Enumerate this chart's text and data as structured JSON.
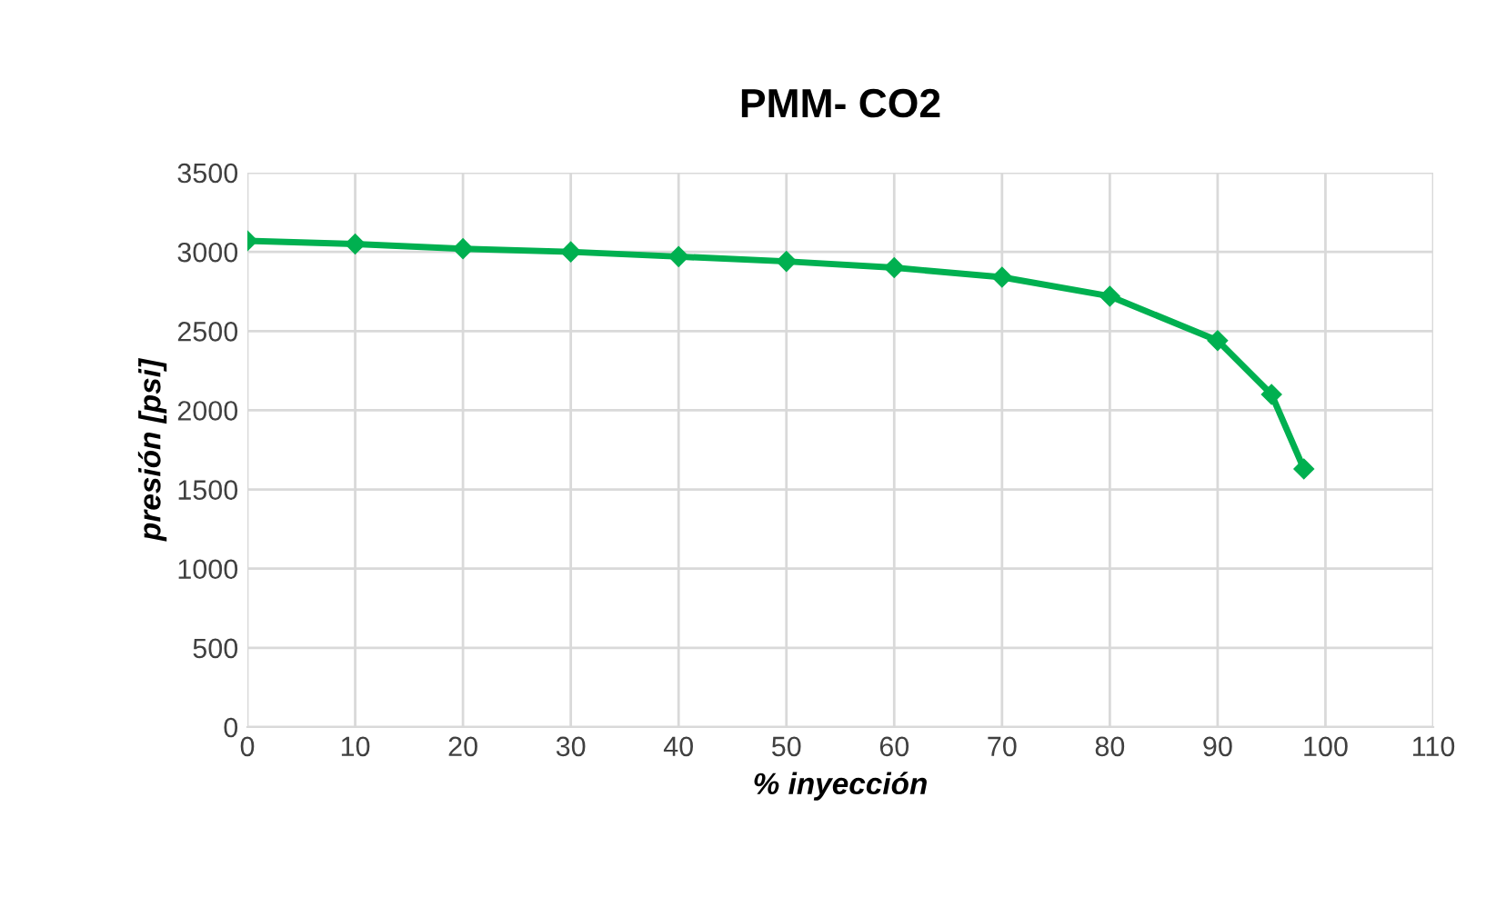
{
  "chart_data": {
    "type": "line",
    "title": "PMM- CO2",
    "xlabel": "% inyección",
    "ylabel": "presión [psi]",
    "x": [
      0,
      10,
      20,
      30,
      40,
      50,
      60,
      70,
      80,
      90,
      95,
      98
    ],
    "series": [
      {
        "color": "#00b050",
        "values": [
          3070,
          3050,
          3020,
          3000,
          2970,
          2940,
          2900,
          2840,
          2720,
          2440,
          2100,
          1630
        ]
      }
    ],
    "xlim": [
      0,
      110
    ],
    "xticks": [
      0,
      10,
      20,
      30,
      40,
      50,
      60,
      70,
      80,
      90,
      100,
      110
    ],
    "ylim": [
      0,
      3500
    ],
    "yticks": [
      0,
      500,
      1000,
      1500,
      2000,
      2500,
      3000,
      3500
    ],
    "grid": true,
    "marker": "diamond",
    "line_style": "solid",
    "legend": false
  }
}
